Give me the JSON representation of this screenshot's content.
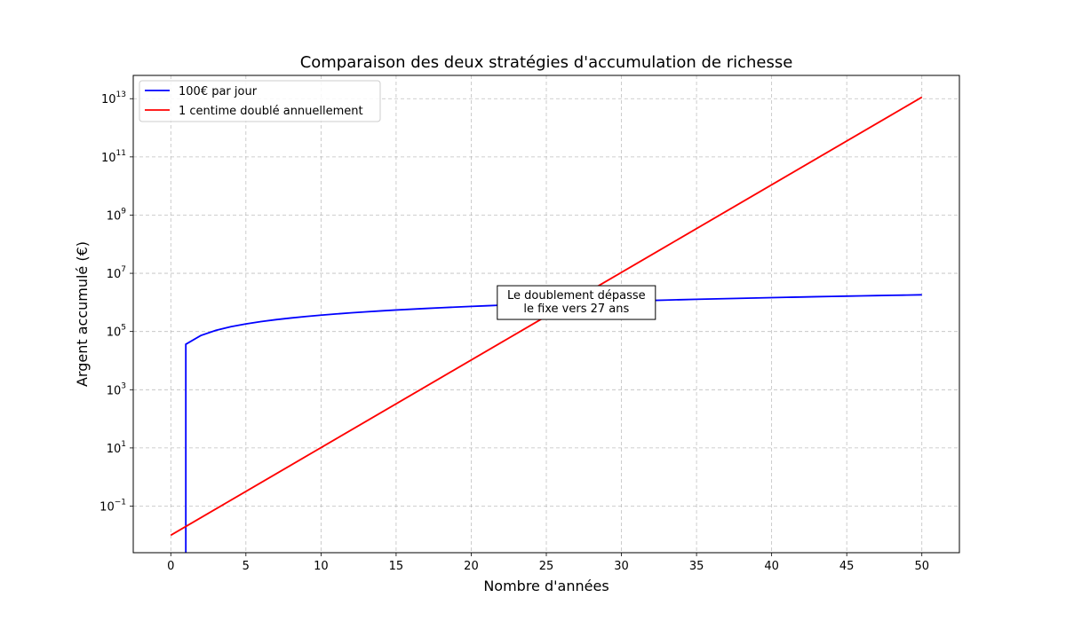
{
  "chart_data": {
    "type": "line",
    "title": "Comparaison des deux stratégies d'accumulation de richesse",
    "xlabel": "Nombre d'années",
    "ylabel": "Argent accumulé (€)",
    "yscale": "log",
    "xlim": [
      -2.5,
      52.5
    ],
    "ylim_log10": [
      -2.6,
      13.8
    ],
    "xticks": [
      0,
      5,
      10,
      15,
      20,
      25,
      30,
      35,
      40,
      45,
      50
    ],
    "yticks": [
      {
        "base": "10",
        "exp": "−1",
        "log": -1
      },
      {
        "base": "10",
        "exp": "1",
        "log": 1
      },
      {
        "base": "10",
        "exp": "3",
        "log": 3
      },
      {
        "base": "10",
        "exp": "5",
        "log": 5
      },
      {
        "base": "10",
        "exp": "7",
        "log": 7
      },
      {
        "base": "10",
        "exp": "9",
        "log": 9
      },
      {
        "base": "10",
        "exp": "11",
        "log": 11
      },
      {
        "base": "10",
        "exp": "13",
        "log": 13
      }
    ],
    "grid": true,
    "legend_position": "top-left",
    "series": [
      {
        "name": "100€ par jour",
        "color": "#0000ff",
        "kind": "fixed",
        "annual_amount": 36500,
        "x_start": 0,
        "x_end": 50
      },
      {
        "name": "1 centime doublé annuellement",
        "color": "#ff0000",
        "kind": "doubling",
        "initial": 0.01,
        "x_start": 0,
        "x_end": 50
      }
    ],
    "annotation": {
      "lines": [
        "Le doublement dépasse",
        "le fixe vers 27 ans"
      ],
      "x": 27,
      "y": 800000
    }
  }
}
